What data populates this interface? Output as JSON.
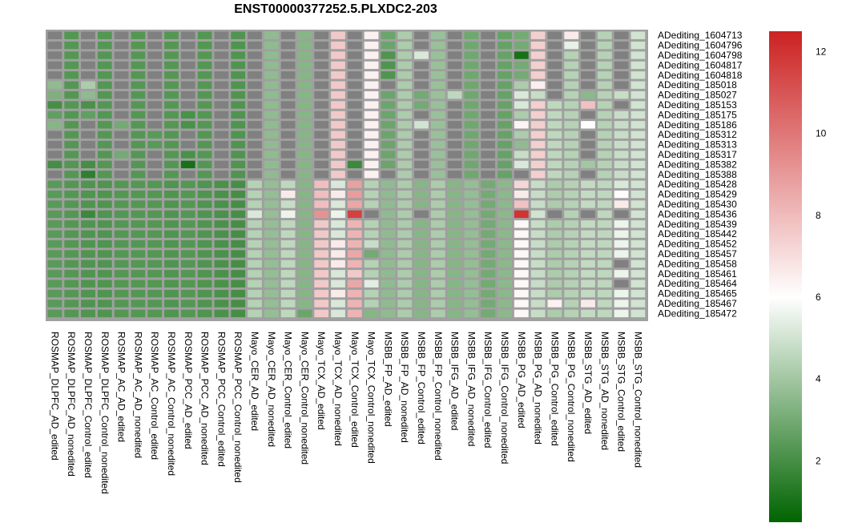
{
  "chart_data": {
    "type": "heatmap",
    "title": "ENST00000377252.5.PLXDC2-203",
    "columns": [
      "ROSMAP_DLPFC_AD_edited",
      "ROSMAP_DLPFC_AD_nonedited",
      "ROSMAP_DLPFC_Control_edited",
      "ROSMAP_DLPFC_Control_nonedited",
      "ROSMAP_AC_AD_edited",
      "ROSMAP_AC_AD_nonedited",
      "ROSMAP_AC_Control_edited",
      "ROSMAP_AC_Control_nonedited",
      "ROSMAP_PCC_AD_edited",
      "ROSMAP_PCC_AD_nonedited",
      "ROSMAP_PCC_Control_edited",
      "ROSMAP_PCC_Control_nonedited",
      "Mayo_CER_AD_edited",
      "Mayo_CER_AD_nonedited",
      "Mayo_CER_Control_edited",
      "Mayo_CER_Control_nonedited",
      "Mayo_TCX_AD_edited",
      "Mayo_TCX_AD_nonedited",
      "Mayo_TCX_Control_edited",
      "Mayo_TCX_Control_nonedited",
      "MSBB_FP_AD_edited",
      "MSBB_FP_AD_nonedited",
      "MSBB_FP_Control_edited",
      "MSBB_FP_Control_nonedited",
      "MSBB_IFG_AD_edited",
      "MSBB_IFG_AD_nonedited",
      "MSBB_IFG_Control_edited",
      "MSBB_IFG_Control_nonedited",
      "MSBB_PG_AD_edited",
      "MSBB_PG_AD_nonedited",
      "MSBB_PG_Control_edited",
      "MSBB_PG_Control_nonedited",
      "MSBB_STG_AD_edited",
      "MSBB_STG_AD_nonedited",
      "MSBB_STG_Control_edited",
      "MSBB_STG_Control_nonedited"
    ],
    "rows": [
      "ADediting_1604713",
      "ADediting_1604796",
      "ADediting_1604798",
      "ADediting_1604817",
      "ADediting_1604818",
      "ADediting_185018",
      "ADediting_185027",
      "ADediting_185153",
      "ADediting_185175",
      "ADediting_185186",
      "ADediting_185312",
      "ADediting_185313",
      "ADediting_185317",
      "ADediting_185382",
      "ADediting_185388",
      "ADediting_185428",
      "ADediting_185429",
      "ADediting_185430",
      "ADediting_185436",
      "ADediting_185439",
      "ADediting_185442",
      "ADediting_185452",
      "ADediting_185457",
      "ADediting_185458",
      "ADediting_185461",
      "ADediting_185464",
      "ADediting_185465",
      "ADediting_185467",
      "ADediting_185472"
    ],
    "values": [
      [
        null,
        2.3,
        null,
        2.3,
        null,
        2.3,
        null,
        2.3,
        null,
        2.3,
        null,
        2.2,
        null,
        3.6,
        null,
        3.4,
        null,
        7.6,
        null,
        6.4,
        2.8,
        4.2,
        null,
        3.8,
        null,
        2.9,
        null,
        2.7,
        3.0,
        7.4,
        null,
        6.6,
        null,
        4.4,
        null,
        5.0
      ],
      [
        null,
        2.3,
        null,
        2.3,
        null,
        2.3,
        null,
        2.3,
        null,
        2.3,
        null,
        2.2,
        null,
        3.6,
        null,
        3.4,
        null,
        7.6,
        null,
        6.4,
        2.8,
        4.2,
        null,
        3.8,
        null,
        2.9,
        null,
        2.7,
        3.0,
        7.4,
        null,
        5.5,
        null,
        4.4,
        null,
        5.0
      ],
      [
        null,
        2.3,
        null,
        2.3,
        null,
        2.3,
        null,
        2.3,
        null,
        2.3,
        null,
        2.2,
        null,
        3.6,
        null,
        3.4,
        null,
        7.6,
        null,
        6.4,
        2.2,
        4.2,
        5.2,
        3.8,
        null,
        2.9,
        null,
        2.7,
        1.0,
        7.4,
        null,
        4.4,
        null,
        4.4,
        null,
        5.0
      ],
      [
        null,
        2.3,
        null,
        2.3,
        null,
        2.3,
        null,
        2.3,
        null,
        2.3,
        null,
        2.2,
        null,
        3.6,
        null,
        3.4,
        null,
        7.6,
        null,
        6.4,
        2.2,
        4.2,
        null,
        3.8,
        null,
        2.9,
        null,
        2.7,
        3.0,
        7.4,
        null,
        4.4,
        null,
        4.4,
        null,
        5.0
      ],
      [
        null,
        2.3,
        null,
        2.3,
        null,
        2.3,
        null,
        2.3,
        null,
        2.3,
        null,
        2.2,
        null,
        3.6,
        null,
        3.4,
        null,
        7.6,
        null,
        6.4,
        2.2,
        4.2,
        null,
        3.8,
        null,
        2.9,
        null,
        2.7,
        3.0,
        7.4,
        null,
        4.4,
        null,
        4.4,
        null,
        5.0
      ],
      [
        3.6,
        2.3,
        4.2,
        2.3,
        null,
        2.3,
        null,
        2.3,
        null,
        2.3,
        null,
        2.2,
        null,
        3.6,
        null,
        3.4,
        null,
        7.6,
        null,
        6.4,
        null,
        4.2,
        null,
        3.8,
        null,
        2.9,
        null,
        2.7,
        4.2,
        6.5,
        null,
        4.4,
        null,
        4.4,
        null,
        5.0
      ],
      [
        3.2,
        2.3,
        3.6,
        2.3,
        null,
        2.3,
        null,
        2.3,
        null,
        2.3,
        null,
        2.2,
        null,
        3.6,
        null,
        3.4,
        null,
        7.6,
        null,
        6.4,
        2.8,
        4.2,
        3.0,
        3.8,
        4.6,
        2.9,
        null,
        2.7,
        5.2,
        4.8,
        null,
        4.4,
        3.5,
        4.4,
        4.8,
        5.0
      ],
      [
        2.0,
        2.3,
        2.1,
        2.3,
        null,
        2.3,
        null,
        2.3,
        null,
        2.3,
        null,
        2.2,
        null,
        3.6,
        null,
        3.4,
        null,
        7.6,
        null,
        6.4,
        2.8,
        4.2,
        3.0,
        3.8,
        null,
        2.9,
        null,
        2.7,
        5.2,
        7.4,
        4.6,
        4.4,
        7.8,
        4.4,
        null,
        5.0
      ],
      [
        2.6,
        2.3,
        2.6,
        2.3,
        null,
        2.3,
        null,
        2.3,
        2.1,
        2.3,
        null,
        2.2,
        null,
        3.6,
        null,
        3.4,
        null,
        7.6,
        null,
        6.4,
        2.8,
        4.2,
        null,
        3.8,
        null,
        2.9,
        null,
        2.7,
        4.2,
        7.4,
        4.6,
        4.4,
        null,
        4.4,
        4.8,
        5.0
      ],
      [
        3.4,
        2.3,
        null,
        2.3,
        3.0,
        2.3,
        null,
        2.3,
        2.1,
        2.3,
        null,
        2.2,
        null,
        3.6,
        null,
        3.4,
        null,
        7.6,
        null,
        6.4,
        2.8,
        4.2,
        5.0,
        3.8,
        null,
        2.9,
        null,
        2.7,
        6.3,
        7.4,
        4.6,
        4.4,
        6.0,
        4.4,
        4.8,
        5.0
      ],
      [
        null,
        2.3,
        null,
        2.3,
        null,
        2.3,
        2.4,
        2.3,
        null,
        2.3,
        null,
        2.2,
        null,
        3.6,
        null,
        3.4,
        null,
        7.6,
        null,
        6.4,
        2.8,
        4.2,
        null,
        3.8,
        null,
        2.9,
        null,
        2.7,
        4.2,
        7.4,
        4.6,
        4.4,
        null,
        4.4,
        4.8,
        5.0
      ],
      [
        null,
        2.3,
        null,
        2.3,
        null,
        2.3,
        2.4,
        2.3,
        null,
        2.3,
        null,
        2.2,
        null,
        3.6,
        null,
        3.4,
        null,
        7.6,
        null,
        6.4,
        2.8,
        4.2,
        null,
        3.8,
        null,
        2.9,
        null,
        2.7,
        3.6,
        7.4,
        4.6,
        4.4,
        null,
        4.4,
        4.8,
        5.0
      ],
      [
        null,
        2.3,
        null,
        2.3,
        3.0,
        2.3,
        null,
        2.3,
        2.1,
        2.3,
        null,
        2.2,
        null,
        3.6,
        null,
        3.4,
        null,
        7.6,
        null,
        6.4,
        2.8,
        4.2,
        null,
        3.8,
        null,
        2.9,
        null,
        2.7,
        4.8,
        7.4,
        4.6,
        4.4,
        null,
        4.4,
        4.8,
        5.0
      ],
      [
        2.0,
        2.3,
        2.0,
        2.3,
        null,
        2.3,
        null,
        2.3,
        1.0,
        2.3,
        null,
        2.2,
        null,
        3.6,
        null,
        3.4,
        null,
        7.6,
        1.8,
        6.4,
        2.8,
        4.2,
        null,
        3.8,
        null,
        2.9,
        null,
        2.7,
        5.2,
        7.4,
        4.6,
        4.4,
        4.0,
        4.4,
        4.8,
        5.0
      ],
      [
        null,
        2.3,
        1.5,
        2.3,
        null,
        2.3,
        null,
        2.3,
        null,
        2.3,
        null,
        2.2,
        null,
        3.6,
        null,
        3.4,
        null,
        7.6,
        null,
        6.4,
        null,
        4.2,
        null,
        3.8,
        null,
        2.9,
        null,
        2.7,
        null,
        7.4,
        4.6,
        4.4,
        null,
        4.4,
        4.8,
        5.0
      ],
      [
        2.4,
        2.3,
        2.2,
        2.2,
        2.3,
        2.3,
        2.3,
        2.2,
        2.3,
        2.2,
        2.1,
        2.0,
        4.4,
        3.7,
        4.6,
        3.4,
        7.9,
        5.2,
        8.8,
        4.4,
        3.6,
        4.2,
        3.4,
        4.2,
        3.4,
        3.7,
        3.0,
        3.5,
        7.2,
        4.8,
        4.2,
        4.4,
        4.7,
        4.6,
        5.2,
        5.0
      ],
      [
        2.4,
        2.3,
        2.2,
        2.2,
        2.3,
        2.3,
        2.3,
        2.2,
        2.3,
        2.2,
        2.1,
        2.0,
        4.4,
        3.7,
        6.6,
        3.4,
        7.9,
        6.6,
        8.9,
        4.4,
        3.6,
        4.2,
        3.4,
        4.2,
        3.4,
        3.7,
        3.0,
        3.5,
        6.6,
        4.8,
        4.2,
        4.4,
        4.7,
        4.6,
        6.1,
        5.0
      ],
      [
        2.4,
        2.3,
        2.2,
        2.2,
        2.3,
        2.3,
        2.3,
        2.2,
        2.3,
        2.2,
        2.1,
        2.0,
        4.4,
        3.7,
        4.8,
        3.4,
        7.9,
        5.2,
        8.6,
        4.4,
        3.6,
        4.2,
        3.4,
        4.2,
        3.4,
        3.7,
        3.0,
        3.5,
        7.8,
        4.8,
        4.2,
        4.4,
        4.7,
        4.6,
        6.6,
        5.0
      ],
      [
        2.4,
        2.3,
        1.8,
        2.2,
        2.3,
        2.3,
        2.3,
        2.2,
        2.3,
        2.2,
        2.1,
        2.0,
        5.2,
        3.7,
        5.6,
        3.4,
        9.2,
        5.6,
        11.6,
        null,
        3.6,
        4.2,
        null,
        4.2,
        3.4,
        3.7,
        3.0,
        3.5,
        12.0,
        5.0,
        null,
        4.4,
        null,
        4.6,
        null,
        5.0
      ],
      [
        2.4,
        2.3,
        2.2,
        2.2,
        2.3,
        2.3,
        2.3,
        2.2,
        2.3,
        2.2,
        2.1,
        2.0,
        4.4,
        3.7,
        4.6,
        3.4,
        7.6,
        5.2,
        8.2,
        4.4,
        3.6,
        4.2,
        3.4,
        4.2,
        3.4,
        3.7,
        3.0,
        3.5,
        6.2,
        4.8,
        4.2,
        4.4,
        4.7,
        4.6,
        5.6,
        5.0
      ],
      [
        2.4,
        2.3,
        2.2,
        2.2,
        2.3,
        2.3,
        2.3,
        2.2,
        2.3,
        2.2,
        2.1,
        2.0,
        4.4,
        3.7,
        4.6,
        3.4,
        7.6,
        5.2,
        8.2,
        4.4,
        3.6,
        4.2,
        3.4,
        4.2,
        3.4,
        3.7,
        3.0,
        3.5,
        6.2,
        4.8,
        4.2,
        4.4,
        4.7,
        4.6,
        5.6,
        5.0
      ],
      [
        2.4,
        2.3,
        2.2,
        2.2,
        2.3,
        2.3,
        2.3,
        2.2,
        2.3,
        2.2,
        2.1,
        2.0,
        4.4,
        3.7,
        4.6,
        3.4,
        7.6,
        6.6,
        8.2,
        4.8,
        3.6,
        4.2,
        3.4,
        4.2,
        3.4,
        3.7,
        3.0,
        3.5,
        6.2,
        4.8,
        4.2,
        4.4,
        4.7,
        4.6,
        5.6,
        5.0
      ],
      [
        2.4,
        2.3,
        2.2,
        2.2,
        2.3,
        2.3,
        2.3,
        2.2,
        2.3,
        2.2,
        2.1,
        2.0,
        4.4,
        3.7,
        4.6,
        3.4,
        7.6,
        6.6,
        8.6,
        3.0,
        3.6,
        4.2,
        3.4,
        4.2,
        3.4,
        3.7,
        3.0,
        3.5,
        6.2,
        4.8,
        4.2,
        4.4,
        4.7,
        4.6,
        5.6,
        5.0
      ],
      [
        2.4,
        2.3,
        2.2,
        2.2,
        2.3,
        2.3,
        2.3,
        2.2,
        2.3,
        2.2,
        2.1,
        2.0,
        4.4,
        3.7,
        4.6,
        3.4,
        7.6,
        6.6,
        8.2,
        4.4,
        3.6,
        4.2,
        3.4,
        4.2,
        3.4,
        3.7,
        3.0,
        3.5,
        6.2,
        4.8,
        4.2,
        4.4,
        4.7,
        4.6,
        null,
        5.0
      ],
      [
        2.4,
        2.3,
        2.2,
        2.2,
        2.3,
        2.3,
        2.3,
        2.2,
        2.3,
        2.2,
        2.1,
        2.0,
        4.4,
        3.7,
        4.6,
        3.4,
        7.6,
        5.2,
        7.6,
        4.4,
        3.6,
        4.2,
        3.4,
        4.2,
        3.4,
        3.7,
        3.0,
        3.5,
        6.2,
        4.8,
        4.2,
        4.4,
        4.7,
        4.6,
        5.6,
        5.0
      ],
      [
        2.4,
        2.3,
        2.2,
        2.2,
        2.3,
        2.3,
        2.3,
        2.2,
        2.3,
        2.2,
        2.1,
        2.0,
        4.4,
        3.7,
        4.6,
        3.4,
        7.6,
        5.2,
        8.6,
        5.4,
        3.6,
        4.2,
        3.4,
        4.2,
        3.4,
        3.7,
        3.0,
        3.5,
        6.2,
        4.8,
        4.2,
        4.4,
        4.7,
        4.6,
        null,
        5.0
      ],
      [
        2.4,
        2.3,
        2.2,
        2.2,
        2.3,
        2.3,
        2.3,
        2.2,
        2.3,
        2.2,
        2.1,
        2.0,
        4.4,
        3.7,
        4.6,
        3.4,
        7.6,
        6.6,
        8.2,
        4.4,
        3.6,
        4.2,
        3.4,
        4.2,
        3.4,
        3.7,
        3.0,
        3.5,
        6.2,
        4.8,
        4.2,
        4.4,
        4.7,
        4.6,
        5.6,
        5.0
      ],
      [
        2.4,
        2.3,
        2.2,
        2.2,
        2.3,
        2.3,
        2.3,
        2.2,
        2.3,
        2.2,
        2.1,
        2.0,
        4.4,
        3.7,
        4.6,
        3.4,
        7.6,
        5.2,
        8.2,
        4.4,
        3.6,
        4.2,
        3.4,
        4.2,
        3.4,
        3.7,
        3.0,
        3.5,
        6.2,
        4.8,
        6.4,
        4.4,
        6.6,
        4.6,
        5.6,
        5.0
      ],
      [
        2.4,
        2.3,
        2.2,
        2.2,
        2.3,
        2.3,
        2.3,
        2.2,
        2.3,
        2.2,
        2.1,
        2.0,
        4.4,
        3.7,
        4.6,
        2.8,
        7.6,
        5.2,
        8.2,
        3.4,
        3.6,
        4.2,
        3.4,
        4.2,
        3.4,
        3.7,
        3.0,
        3.5,
        6.2,
        4.8,
        4.2,
        4.4,
        4.7,
        4.6,
        5.6,
        5.0
      ]
    ],
    "colorbar": {
      "min": 0.5,
      "max": 12.5,
      "ticks": [
        2,
        4,
        6,
        8,
        10,
        12
      ]
    },
    "colors": {
      "low": "#006400",
      "mid": "#ffffff",
      "high": "#cc2222",
      "na": "#808080",
      "grid": "#a0a0a0"
    }
  }
}
